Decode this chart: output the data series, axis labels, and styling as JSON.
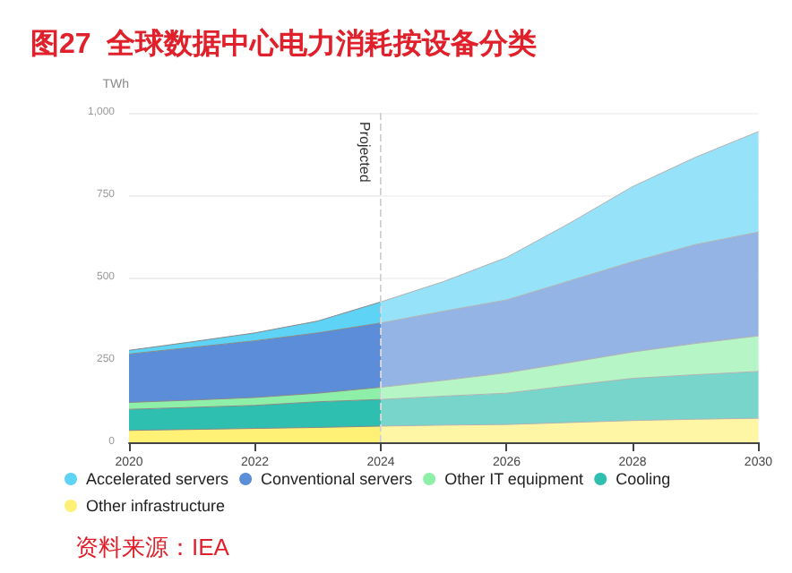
{
  "chart_data": {
    "type": "area",
    "stacked": true,
    "title": "图27  全球数据中心电力消耗按设备分类",
    "ylabel": "TWh",
    "x": [
      2020,
      2021,
      2022,
      2023,
      2024,
      2025,
      2026,
      2027,
      2028,
      2029,
      2030
    ],
    "series": [
      {
        "name": "Other infrastructure",
        "color": "#fff176",
        "values": [
          36,
          39,
          42,
          45,
          49,
          52,
          54,
          60,
          66,
          70,
          73
        ]
      },
      {
        "name": "Cooling",
        "color": "#2fbfb0",
        "values": [
          64,
          67,
          70,
          78,
          81,
          88,
          95,
          112,
          128,
          135,
          142
        ]
      },
      {
        "name": "Other IT equipment",
        "color": "#8ef0a8",
        "values": [
          21,
          22,
          24,
          26,
          37,
          48,
          62,
          70,
          80,
          95,
          108
        ]
      },
      {
        "name": "Conventional servers",
        "color": "#5b8dd9",
        "values": [
          147,
          160,
          172,
          183,
          195,
          210,
          221,
          248,
          274,
          300,
          315
        ]
      },
      {
        "name": "Accelerated servers",
        "color": "#5fd3f5",
        "values": [
          11,
          17,
          24,
          36,
          64,
          90,
          129,
          175,
          228,
          265,
          305
        ]
      }
    ],
    "xlim": [
      2020,
      2030
    ],
    "xticks": [
      2020,
      2022,
      2024,
      2026,
      2028,
      2030
    ],
    "ylim": [
      0,
      1000
    ],
    "yticks": [
      0,
      250,
      500,
      750,
      {
        "value": 1000,
        "label": "1,000"
      }
    ],
    "grid": "y",
    "legend": "bottom",
    "marker": "none",
    "ref_lines": [
      {
        "axis": "x",
        "value": 2024,
        "label": "Projected",
        "line_style": "dashed",
        "color": "#cccccc"
      }
    ],
    "bands": [
      {
        "axis": "x",
        "from": 2024,
        "to": 2030,
        "color": "#ffffff"
      }
    ],
    "annotations": [
      "资料来源：IEA"
    ]
  }
}
